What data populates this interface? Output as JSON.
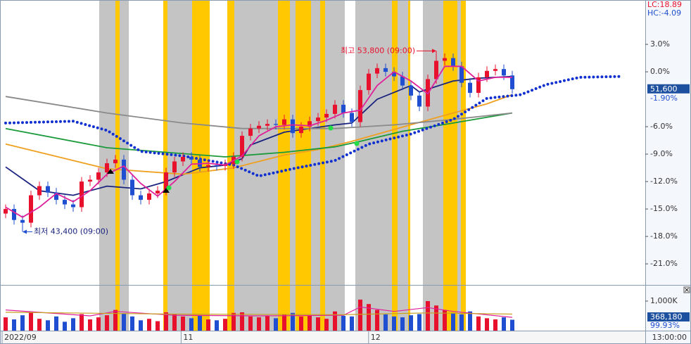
{
  "chart_data": [
    {
      "type": "candlestick",
      "open": [
        -15.5,
        -15.0,
        -16.2,
        -16.5,
        -13.5,
        -12.5,
        -13.2,
        -14.0,
        -14.5,
        -14.8,
        -12.0,
        -11.8,
        -11.0,
        -10.0,
        -9.6,
        -11.8,
        -13.5,
        -14.0,
        -13.3,
        -13.0,
        -11.0,
        -9.8,
        -9.3,
        -9.6,
        -10.4,
        -10.2,
        -10.3,
        -10.1,
        -9.3,
        -7.0,
        -6.2,
        -5.9,
        -5.7,
        -5.8,
        -5.2,
        -6.7,
        -6.0,
        -5.4,
        -5.0,
        -4.6,
        -3.6,
        -4.5,
        -5.5,
        -2.0,
        -0.2,
        0.4,
        0.0,
        -0.5,
        -1.5,
        -2.6,
        -3.8,
        -0.8,
        1.2,
        1.5,
        0.6,
        -1.2,
        -2.3,
        -0.6,
        0.1,
        0.3,
        -0.4
      ],
      "high": [
        -14.5,
        -14.5,
        -15.7,
        -13.0,
        -12.0,
        -12.0,
        -12.7,
        -13.5,
        -14.0,
        -11.5,
        -11.3,
        -10.5,
        -9.5,
        -9.1,
        -9.1,
        -11.3,
        -13.0,
        -12.8,
        -12.5,
        -10.5,
        -9.3,
        -8.8,
        -8.8,
        -9.1,
        -9.7,
        -9.7,
        -9.6,
        -8.8,
        -6.5,
        -5.7,
        -5.4,
        -5.2,
        -5.2,
        -4.7,
        -4.7,
        -5.5,
        -4.9,
        -4.5,
        -4.1,
        -3.1,
        -3.1,
        -4.0,
        -1.5,
        0.3,
        0.9,
        0.9,
        0.5,
        0.0,
        -1.0,
        -2.1,
        -0.3,
        2.28,
        2.0,
        2.0,
        1.1,
        -0.7,
        -0.1,
        0.6,
        0.8,
        0.8,
        0.1
      ],
      "low": [
        -16.0,
        -16.7,
        -17.49,
        -17.0,
        -14.0,
        -13.7,
        -14.5,
        -15.0,
        -15.3,
        -15.3,
        -12.5,
        -12.3,
        -11.5,
        -10.5,
        -12.3,
        -14.0,
        -14.5,
        -14.5,
        -13.8,
        -13.5,
        -11.5,
        -10.3,
        -10.1,
        -10.9,
        -10.9,
        -10.8,
        -10.8,
        -10.6,
        -9.8,
        -7.5,
        -6.7,
        -6.4,
        -6.3,
        -6.3,
        -7.2,
        -7.2,
        -6.5,
        -5.9,
        -5.5,
        -5.1,
        -5.0,
        -6.0,
        -6.0,
        -2.5,
        -0.7,
        -0.5,
        -1.0,
        -2.0,
        -3.1,
        -4.3,
        -4.3,
        -1.3,
        0.7,
        0.1,
        -1.7,
        -2.8,
        -2.8,
        -1.1,
        -0.4,
        -0.9,
        -2.4
      ],
      "close": [
        -15.0,
        -16.2,
        -16.5,
        -13.5,
        -12.5,
        -13.2,
        -14.0,
        -14.5,
        -14.8,
        -12.0,
        -11.8,
        -11.0,
        -10.0,
        -9.6,
        -11.8,
        -13.5,
        -14.0,
        -13.3,
        -13.0,
        -11.0,
        -9.8,
        -9.3,
        -9.6,
        -10.4,
        -10.2,
        -10.3,
        -10.1,
        -9.3,
        -7.0,
        -6.2,
        -5.9,
        -5.7,
        -5.8,
        -5.2,
        -6.7,
        -6.0,
        -5.4,
        -5.0,
        -4.6,
        -3.6,
        -4.5,
        -5.5,
        -2.0,
        -0.2,
        0.4,
        0.0,
        -0.5,
        -1.5,
        -2.6,
        -3.8,
        -0.8,
        1.2,
        1.5,
        0.6,
        -1.2,
        -2.3,
        -0.6,
        0.1,
        0.3,
        -0.4,
        -1.9
      ],
      "color_up": "#e8112d",
      "color_down": "#1f4fd0",
      "lines": [
        {
          "color": "#e0209a",
          "x": [
            0,
            2,
            4,
            6,
            8,
            10,
            12,
            14,
            16,
            18,
            20,
            22,
            24,
            26,
            28,
            30,
            32,
            34,
            36,
            38,
            40,
            42,
            44,
            46,
            48,
            50,
            52,
            54,
            56,
            58,
            60
          ],
          "values": [
            -14.8,
            -15.9,
            -14.8,
            -13.3,
            -14.2,
            -13.0,
            -11.2,
            -10.3,
            -12.2,
            -13.6,
            -12.0,
            -10.1,
            -10.0,
            -10.2,
            -9.2,
            -7.0,
            -6.0,
            -5.8,
            -5.9,
            -5.3,
            -4.5,
            -4.2,
            -1.5,
            0.0,
            -1.0,
            -2.4,
            0.6,
            0.6,
            -1.0,
            -0.6,
            -0.6
          ]
        },
        {
          "color": "#1a237e",
          "x": [
            0,
            4,
            8,
            12,
            16,
            19,
            23,
            26,
            28,
            29,
            33,
            39,
            41,
            44,
            48,
            49,
            53,
            56,
            60
          ],
          "values": [
            -10.4,
            -13.0,
            -13.5,
            -12.5,
            -12.8,
            -12.0,
            -10.5,
            -10.2,
            -9.5,
            -8.0,
            -6.6,
            -5.8,
            -5.6,
            -3.0,
            -1.5,
            -2.2,
            -1.0,
            -0.7,
            -0.5
          ]
        },
        {
          "color": "#f0a020",
          "x": [
            0,
            12,
            21,
            27,
            33,
            37,
            41,
            46,
            53,
            57,
            60
          ],
          "values": [
            -7.9,
            -10.6,
            -11.2,
            -10.5,
            -9.1,
            -8.5,
            -7.6,
            -6.3,
            -4.5,
            -3.5,
            -2.5
          ]
        },
        {
          "color": "#1a9a3a",
          "x": [
            0,
            12,
            26,
            33,
            39,
            42,
            47,
            53,
            60
          ],
          "values": [
            -6.2,
            -8.3,
            -9.3,
            -8.8,
            -8.2,
            -7.6,
            -6.5,
            -5.6,
            -4.5
          ]
        },
        {
          "color": "#8a8a8a",
          "x": [
            0,
            12,
            21,
            28,
            39,
            46,
            53,
            60
          ],
          "values": [
            -2.7,
            -4.5,
            -5.6,
            -6.2,
            -6.2,
            -5.8,
            -5.2,
            -4.5
          ]
        },
        {
          "color": "#1030d0",
          "style": "dotted",
          "x": [
            0,
            8,
            12,
            16,
            21,
            27,
            30,
            34,
            39,
            43,
            48,
            53,
            57,
            61,
            64,
            68,
            73
          ],
          "values": [
            -5.6,
            -5.4,
            -6.4,
            -8.7,
            -9.2,
            -10.2,
            -11.4,
            -10.6,
            -9.7,
            -7.9,
            -6.8,
            -5.2,
            -2.9,
            -2.5,
            -1.4,
            -0.6,
            -0.5
          ]
        }
      ],
      "ylim": [
        -23.3,
        7.85
      ],
      "yticks": [
        {
          "value": 3,
          "label": "3.0%"
        },
        {
          "value": 0,
          "label": "0.0%"
        },
        {
          "value": -6,
          "label": "-6.0%"
        },
        {
          "value": -9,
          "label": "-9.0%"
        },
        {
          "value": -12,
          "label": "-12.0%"
        },
        {
          "value": -15,
          "label": "-15.0%"
        },
        {
          "value": -18,
          "label": "-18.0%"
        },
        {
          "value": -21,
          "label": "-21.0%"
        }
      ],
      "annotations": [
        {
          "text": "최고 53,800 (09:00)",
          "x": 51,
          "y": 2.28,
          "color": "#e8112d"
        },
        {
          "text": "최저 43,400 (09:00)",
          "x": 2,
          "y": -17.49,
          "color": "#1f4fd0"
        }
      ],
      "x_labels": [
        {
          "index": 0,
          "label": "2022/09"
        },
        {
          "index": 21.2,
          "label": "11"
        },
        {
          "index": 43.4,
          "label": "12"
        }
      ],
      "lc": "LC:18.89",
      "hc": "HC:-4.09",
      "price_readout": "51,600",
      "pct_readout": "-1.90%"
    },
    {
      "type": "bar",
      "values": [
        450000,
        380000,
        520000,
        610000,
        400000,
        350000,
        480000,
        300000,
        420000,
        560000,
        380000,
        450000,
        520000,
        700000,
        580000,
        480000,
        350000,
        400000,
        320000,
        620000,
        550000,
        480000,
        420000,
        500000,
        380000,
        350000,
        400000,
        600000,
        620000,
        480000,
        450000,
        500000,
        420000,
        550000,
        600000,
        480000,
        520000,
        450000,
        400000,
        650000,
        500000,
        480000,
        1050000,
        900000,
        700000,
        550000,
        480000,
        450000,
        520000,
        560000,
        1000000,
        850000,
        700000,
        600000,
        550000,
        650000,
        480000,
        420000,
        380000,
        450000,
        368180
      ],
      "lines": [
        {
          "color": "#e0209a",
          "x": [
            0,
            10,
            13,
            20,
            30,
            40,
            42,
            46,
            50,
            53,
            60
          ],
          "values": [
            700000,
            500000,
            650000,
            520000,
            500000,
            520000,
            800000,
            650000,
            780000,
            650000,
            450000
          ]
        },
        {
          "color": "#c8a020",
          "x": [
            0,
            20,
            40,
            50,
            60
          ],
          "values": [
            620000,
            560000,
            540000,
            600000,
            560000
          ]
        }
      ],
      "ylim": [
        0,
        1547000
      ],
      "yticks": [
        {
          "value": 1000000,
          "label": "1,000K"
        }
      ],
      "volume_readout": "368,180",
      "ratio_readout": "99.93%",
      "time_label": "13:00:00"
    }
  ]
}
